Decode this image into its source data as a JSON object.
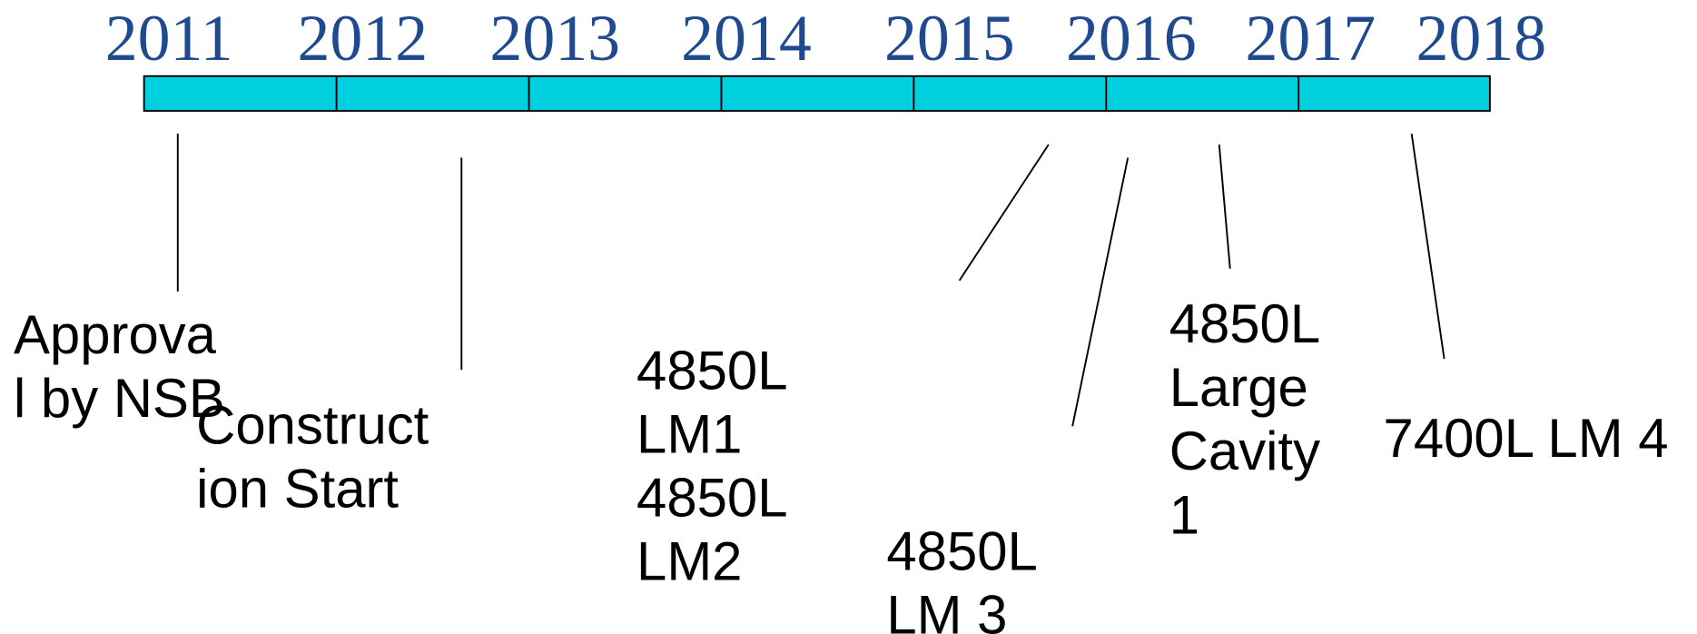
{
  "years": [
    "2011",
    "2012",
    "2013",
    "2014",
    "2015",
    "2016",
    "2017",
    "2018"
  ],
  "events": [
    {
      "lines": [
        "Approva",
        "l by NSB"
      ]
    },
    {
      "lines": [
        "Construct",
        "ion Start"
      ]
    },
    {
      "lines": [
        "4850L",
        "LM1",
        "4850L",
        "LM2"
      ]
    },
    {
      "lines": [
        "4850L",
        "LM 3"
      ]
    },
    {
      "lines": [
        "4850L",
        "Large",
        "Cavity",
        "1"
      ]
    },
    {
      "lines": [
        "7400L LM 4"
      ]
    }
  ]
}
